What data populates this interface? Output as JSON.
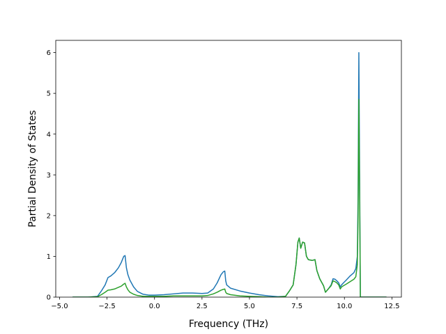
{
  "chart_data": {
    "type": "line",
    "title": "",
    "xlabel": "Frequency (THz)",
    "ylabel": "Partial Density of States",
    "xlim": [
      -5.2,
      13.0
    ],
    "ylim": [
      0,
      6.3
    ],
    "xticks": [
      -5.0,
      -2.5,
      0.0,
      2.5,
      5.0,
      7.5,
      10.0,
      12.5
    ],
    "xtick_labels": [
      "−5.0",
      "−2.5",
      "0.0",
      "2.5",
      "5.0",
      "7.5",
      "10.0",
      "12.5"
    ],
    "yticks": [
      0,
      1,
      2,
      3,
      4,
      5,
      6
    ],
    "ytick_labels": [
      "0",
      "1",
      "2",
      "3",
      "4",
      "5",
      "6"
    ],
    "grid": false,
    "legend": "none",
    "series": [
      {
        "color": "#1f77b4",
        "x": [
          -4.3,
          -3.5,
          -3.0,
          -2.8,
          -2.6,
          -2.45,
          -2.3,
          -2.1,
          -1.9,
          -1.75,
          -1.62,
          -1.55,
          -1.48,
          -1.4,
          -1.3,
          -1.1,
          -0.9,
          -0.6,
          -0.3,
          0.0,
          0.5,
          1.0,
          1.5,
          2.0,
          2.5,
          2.8,
          3.1,
          3.3,
          3.5,
          3.62,
          3.7,
          3.75,
          3.8,
          4.0,
          4.5,
          5.0,
          5.5,
          6.0,
          6.5,
          6.9,
          7.1,
          7.3,
          7.45,
          7.55,
          7.62,
          7.7,
          7.8,
          7.9,
          8.0,
          8.1,
          8.3,
          8.45,
          8.55,
          8.7,
          8.9,
          9.0,
          9.15,
          9.3,
          9.4,
          9.5,
          9.6,
          9.7,
          9.78,
          9.85,
          9.95,
          10.1,
          10.3,
          10.5,
          10.6,
          10.68,
          10.72,
          10.76,
          10.8,
          10.84,
          10.9,
          11.2,
          11.8,
          12.2
        ],
        "values": [
          0.0,
          0.0,
          0.02,
          0.15,
          0.3,
          0.48,
          0.52,
          0.6,
          0.72,
          0.85,
          1.0,
          1.02,
          0.72,
          0.55,
          0.42,
          0.25,
          0.14,
          0.07,
          0.05,
          0.05,
          0.06,
          0.08,
          0.1,
          0.1,
          0.09,
          0.1,
          0.2,
          0.35,
          0.55,
          0.62,
          0.64,
          0.4,
          0.3,
          0.22,
          0.15,
          0.1,
          0.06,
          0.03,
          0.01,
          0.02,
          0.15,
          0.3,
          0.8,
          1.35,
          1.45,
          1.2,
          1.35,
          1.33,
          1.0,
          0.92,
          0.9,
          0.92,
          0.65,
          0.45,
          0.28,
          0.12,
          0.2,
          0.3,
          0.45,
          0.44,
          0.4,
          0.35,
          0.25,
          0.3,
          0.35,
          0.42,
          0.52,
          0.6,
          0.7,
          1.0,
          2.5,
          6.0,
          3.0,
          0.0,
          0.0,
          0.0,
          0.0,
          0.0
        ]
      },
      {
        "color": "#2ca02c",
        "x": [
          -4.3,
          -3.5,
          -3.0,
          -2.8,
          -2.6,
          -2.45,
          -2.3,
          -2.1,
          -1.9,
          -1.75,
          -1.62,
          -1.55,
          -1.48,
          -1.4,
          -1.3,
          -1.1,
          -0.9,
          -0.6,
          -0.3,
          0.0,
          0.5,
          1.0,
          1.5,
          2.0,
          2.5,
          2.8,
          3.1,
          3.3,
          3.5,
          3.62,
          3.7,
          3.75,
          3.8,
          4.0,
          4.5,
          5.0,
          5.5,
          6.0,
          6.5,
          6.9,
          7.1,
          7.3,
          7.45,
          7.55,
          7.62,
          7.7,
          7.8,
          7.9,
          8.0,
          8.1,
          8.3,
          8.45,
          8.55,
          8.7,
          8.9,
          9.0,
          9.15,
          9.3,
          9.4,
          9.5,
          9.6,
          9.7,
          9.78,
          9.85,
          9.95,
          10.1,
          10.3,
          10.5,
          10.6,
          10.68,
          10.72,
          10.76,
          10.8,
          10.84,
          10.9,
          11.2,
          11.8,
          12.2
        ],
        "values": [
          0.0,
          0.0,
          0.01,
          0.06,
          0.12,
          0.17,
          0.18,
          0.2,
          0.24,
          0.27,
          0.32,
          0.34,
          0.25,
          0.18,
          0.12,
          0.07,
          0.04,
          0.02,
          0.02,
          0.02,
          0.02,
          0.03,
          0.03,
          0.03,
          0.03,
          0.04,
          0.08,
          0.12,
          0.17,
          0.19,
          0.2,
          0.12,
          0.09,
          0.06,
          0.03,
          0.02,
          0.01,
          0.0,
          0.0,
          0.02,
          0.15,
          0.3,
          0.8,
          1.35,
          1.45,
          1.2,
          1.35,
          1.33,
          1.0,
          0.92,
          0.9,
          0.92,
          0.65,
          0.45,
          0.28,
          0.12,
          0.2,
          0.28,
          0.4,
          0.38,
          0.35,
          0.3,
          0.2,
          0.25,
          0.28,
          0.32,
          0.38,
          0.44,
          0.5,
          0.8,
          2.0,
          4.85,
          2.5,
          0.0,
          0.0,
          0.0,
          0.0,
          0.0
        ]
      }
    ]
  }
}
